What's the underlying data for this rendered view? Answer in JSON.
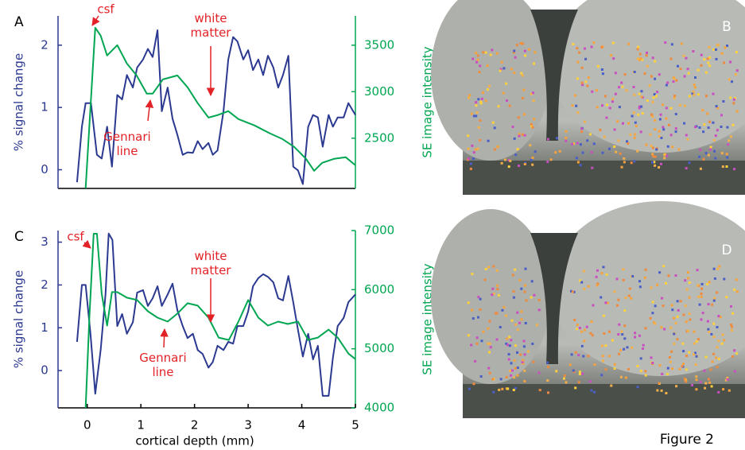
{
  "chart_data": [
    {
      "type": "line",
      "panel": "A",
      "ylabel": "% signal change",
      "y2label": "SE image intensity",
      "xlim": [
        -0.5,
        5
      ],
      "ylim": [
        -0.3,
        2.47
      ],
      "yticks": [
        0,
        1,
        2
      ],
      "y2lim": [
        1960,
        3815
      ],
      "y2ticks": [
        2500,
        3000,
        3500
      ],
      "annotations": [
        "csf",
        "white matter",
        "Gennari line"
      ],
      "series": [
        {
          "color": "#2b3990",
          "axis": "y",
          "x": [
            -0.19,
            -0.1,
            -0.03,
            0.07,
            0.18,
            0.27,
            0.37,
            0.46,
            0.56,
            0.65,
            0.74,
            0.85,
            0.93,
            1.04,
            1.13,
            1.22,
            1.31,
            1.39,
            1.5,
            1.59,
            1.68,
            1.78,
            1.87,
            1.97,
            2.06,
            2.15,
            2.26,
            2.34,
            2.43,
            2.54,
            2.63,
            2.72,
            2.8,
            2.91,
            3.0,
            3.09,
            3.19,
            3.28,
            3.37,
            3.47,
            3.56,
            3.65,
            3.75,
            3.84,
            3.93,
            4.02,
            4.12,
            4.21,
            4.3,
            4.39,
            4.5,
            4.58,
            4.67,
            4.78,
            4.87,
            5.0
          ],
          "values": [
            -0.2,
            0.69,
            1.07,
            1.07,
            0.24,
            0.18,
            0.69,
            0.05,
            1.2,
            1.13,
            1.52,
            1.32,
            1.64,
            1.77,
            1.94,
            1.81,
            2.24,
            0.94,
            1.32,
            0.82,
            0.56,
            0.24,
            0.28,
            0.27,
            0.46,
            0.33,
            0.43,
            0.24,
            0.31,
            0.94,
            1.77,
            2.13,
            2.06,
            1.77,
            1.92,
            1.6,
            1.77,
            1.52,
            1.83,
            1.64,
            1.32,
            1.52,
            1.83,
            0.05,
            -0.01,
            -0.23,
            0.69,
            0.88,
            0.84,
            0.37,
            0.88,
            0.69,
            0.84,
            0.84,
            1.07,
            0.88
          ]
        },
        {
          "color": "#00a651",
          "axis": "y2",
          "x": [
            -0.03,
            0.15,
            0.25,
            0.37,
            0.56,
            0.74,
            0.92,
            1.11,
            1.22,
            1.41,
            1.68,
            1.87,
            2.06,
            2.26,
            2.43,
            2.63,
            2.82,
            3.12,
            3.41,
            3.64,
            3.86,
            4.08,
            4.23,
            4.38,
            4.6,
            4.82,
            5.0
          ],
          "values": [
            1962,
            3688,
            3603,
            3389,
            3500,
            3303,
            3175,
            2979,
            2979,
            3132,
            3175,
            3047,
            2876,
            2722,
            2748,
            2791,
            2705,
            2637,
            2551,
            2491,
            2406,
            2278,
            2150,
            2235,
            2278,
            2295,
            2209
          ]
        }
      ]
    },
    {
      "type": "line",
      "panel": "C",
      "ylabel": "% signal change",
      "y2label": "SE image intensity",
      "xlabel": "cortical depth (mm)",
      "xlim": [
        -0.5,
        5
      ],
      "xticks": [
        0,
        1,
        2,
        3,
        4,
        5
      ],
      "ylim": [
        -0.87,
        3.27
      ],
      "yticks": [
        0,
        1,
        2,
        3
      ],
      "y2lim": [
        4000,
        7000
      ],
      "y2ticks": [
        4000,
        5000,
        6000,
        7000
      ],
      "annotations": [
        "csf",
        "white matter",
        "Gennari line"
      ],
      "series": [
        {
          "color": "#2b3990",
          "axis": "y",
          "x": [
            -0.19,
            -0.1,
            -0.03,
            0.06,
            0.15,
            0.25,
            0.34,
            0.4,
            0.47,
            0.56,
            0.65,
            0.74,
            0.85,
            0.93,
            1.04,
            1.13,
            1.22,
            1.31,
            1.39,
            1.5,
            1.59,
            1.68,
            1.78,
            1.87,
            1.97,
            2.06,
            2.15,
            2.26,
            2.34,
            2.43,
            2.54,
            2.63,
            2.72,
            2.8,
            2.91,
            3.0,
            3.09,
            3.19,
            3.28,
            3.37,
            3.47,
            3.56,
            3.65,
            3.75,
            3.84,
            3.93,
            4.02,
            4.12,
            4.21,
            4.3,
            4.39,
            4.5,
            4.58,
            4.67,
            4.78,
            4.87,
            5.0
          ],
          "values": [
            0.67,
            2.0,
            2.0,
            0.86,
            -0.54,
            0.48,
            1.78,
            3.2,
            3.05,
            1.04,
            1.32,
            0.86,
            1.13,
            1.82,
            1.88,
            1.51,
            1.69,
            1.97,
            1.51,
            1.78,
            2.03,
            1.41,
            1.04,
            0.76,
            0.86,
            0.48,
            0.39,
            0.07,
            0.2,
            0.58,
            0.48,
            0.67,
            0.63,
            1.04,
            1.04,
            1.38,
            1.97,
            2.16,
            2.25,
            2.19,
            2.06,
            1.69,
            1.64,
            2.21,
            1.6,
            0.95,
            0.33,
            0.86,
            0.26,
            0.58,
            -0.59,
            -0.59,
            0.3,
            1.04,
            1.23,
            1.6,
            1.78
          ]
        },
        {
          "color": "#00a651",
          "axis": "y2",
          "x": [
            -0.03,
            0.04,
            0.12,
            0.18,
            0.27,
            0.37,
            0.46,
            0.56,
            0.74,
            0.93,
            1.13,
            1.31,
            1.5,
            1.68,
            1.87,
            2.06,
            2.26,
            2.45,
            2.64,
            2.82,
            3.0,
            3.19,
            3.37,
            3.56,
            3.74,
            3.93,
            4.12,
            4.3,
            4.5,
            4.67,
            4.87,
            5.0
          ],
          "values": [
            4000,
            5527,
            6946,
            6946,
            5932,
            5392,
            5959,
            5959,
            5865,
            5824,
            5635,
            5527,
            5459,
            5595,
            5770,
            5730,
            5527,
            5189,
            5149,
            5459,
            5824,
            5527,
            5392,
            5459,
            5419,
            5459,
            5149,
            5189,
            5324,
            5189,
            4919,
            4824
          ]
        }
      ]
    }
  ],
  "image_panels": [
    "B",
    "D"
  ],
  "figure_label": "Figure 2"
}
